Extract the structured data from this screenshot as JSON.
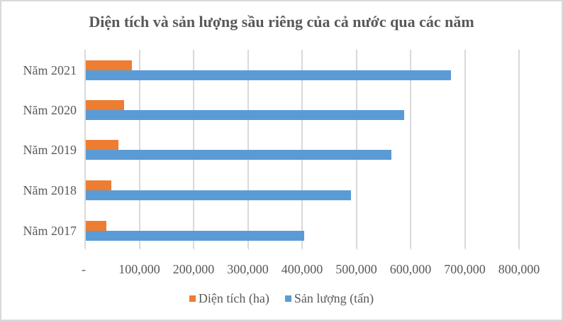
{
  "chart_data": {
    "type": "bar",
    "orientation": "horizontal",
    "title": "Diện tích và sản lượng sầu riêng của cả nước qua các năm",
    "categories": [
      "Năm 2021",
      "Năm 2020",
      "Năm 2019",
      "Năm 2018",
      "Năm 2017"
    ],
    "series": [
      {
        "name": "Diện tích (ha)",
        "color": "#ed7d31",
        "values": [
          85000,
          71000,
          60000,
          47000,
          38000
        ]
      },
      {
        "name": "Sản lượng (tấn)",
        "color": "#5b9bd5",
        "values": [
          673000,
          587000,
          563000,
          489000,
          402000
        ]
      }
    ],
    "xlabel": "",
    "ylabel": "",
    "xlim": [
      0,
      800000
    ],
    "x_tick_labels": [
      "-",
      "100,000",
      "200,000",
      "300,000",
      "400,000",
      "500,000",
      "600,000",
      "700,000",
      "800,000"
    ],
    "grid": true,
    "legend_position": "bottom"
  }
}
